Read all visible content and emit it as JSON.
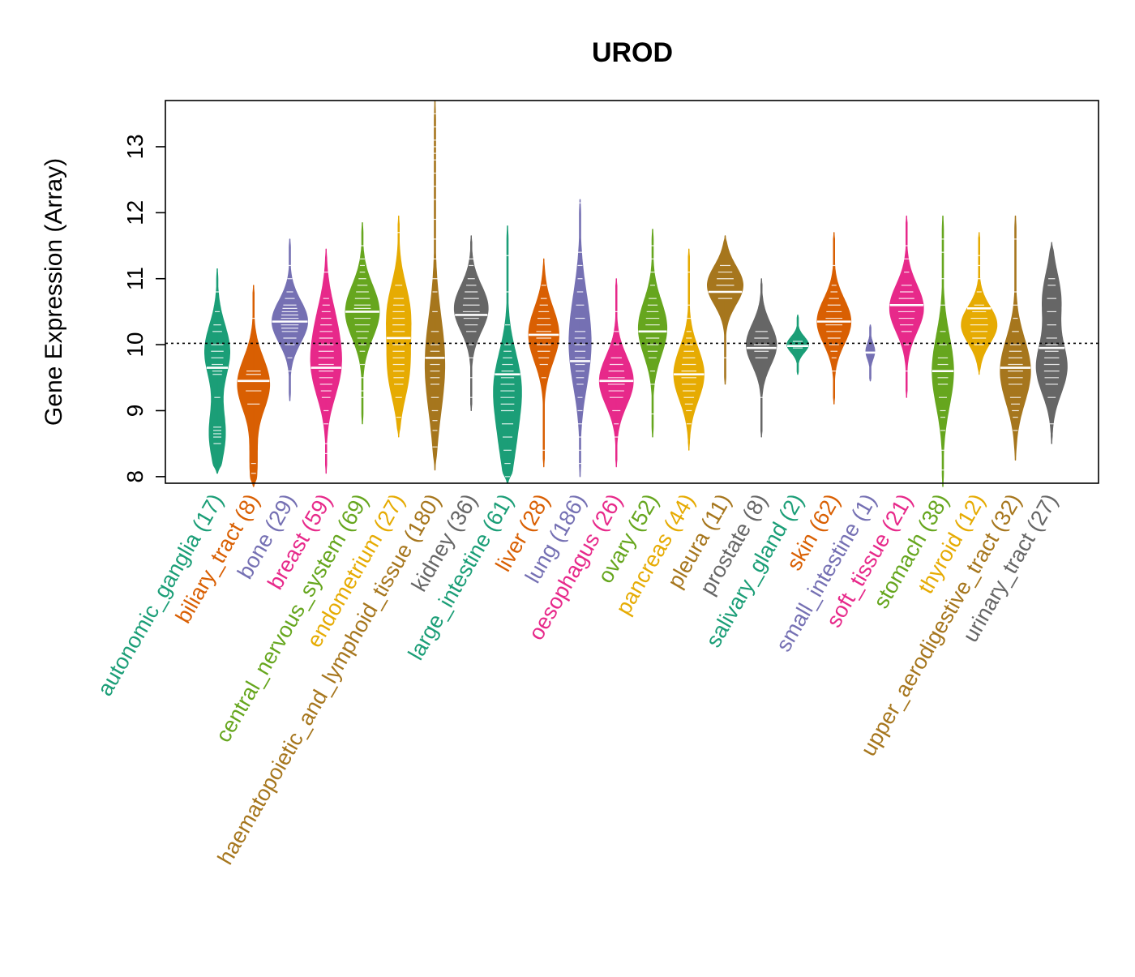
{
  "chart_data": {
    "type": "violin",
    "title": "UROD",
    "xlabel": "",
    "ylabel": "Gene Expression (Array)",
    "ylim": [
      7.9,
      13.7
    ],
    "yticks": [
      8,
      9,
      10,
      11,
      12,
      13
    ],
    "reference_line": 10.02,
    "categories": [
      {
        "label": "autonomic_ganglia (17)",
        "color": "#1B9E77",
        "min": 8.05,
        "max": 11.15,
        "median": 9.65,
        "modes": [
          [
            9.9,
            0.7
          ],
          [
            8.65,
            0.45
          ]
        ],
        "points": [
          8.5,
          8.6,
          8.65,
          8.7,
          8.75,
          9.2,
          9.55,
          9.6,
          9.65,
          9.7,
          9.8,
          9.9,
          10.0,
          10.2,
          10.3,
          10.5,
          10.8
        ]
      },
      {
        "label": "biliary_tract (8)",
        "color": "#D95F02",
        "min": 7.85,
        "max": 10.9,
        "median": 9.45,
        "modes": [
          [
            9.4,
            0.9
          ],
          [
            8.2,
            0.2
          ]
        ],
        "points": [
          8.05,
          8.2,
          9.1,
          9.3,
          9.45,
          9.55,
          9.6,
          10.4
        ]
      },
      {
        "label": "bone (29)",
        "color": "#7570B3",
        "min": 9.15,
        "max": 11.6,
        "median": 10.35,
        "modes": [
          [
            10.35,
            1.0
          ]
        ],
        "points": [
          9.6,
          9.8,
          10.0,
          10.1,
          10.2,
          10.25,
          10.3,
          10.35,
          10.4,
          10.45,
          10.5,
          10.55,
          10.6,
          10.7,
          10.8,
          11.0,
          11.2
        ]
      },
      {
        "label": "breast (59)",
        "color": "#E7298A",
        "min": 8.05,
        "max": 11.45,
        "median": 9.65,
        "modes": [
          [
            9.6,
            0.7
          ],
          [
            10.3,
            0.45
          ]
        ],
        "points": [
          8.35,
          8.5,
          8.8,
          9.0,
          9.2,
          9.3,
          9.4,
          9.5,
          9.6,
          9.65,
          9.7,
          9.8,
          9.9,
          10.0,
          10.1,
          10.2,
          10.3,
          10.4,
          10.5,
          10.6,
          10.7,
          11.1
        ]
      },
      {
        "label": "central_nervous_system (69)",
        "color": "#66A61E",
        "min": 8.8,
        "max": 11.85,
        "median": 10.5,
        "modes": [
          [
            10.5,
            0.95
          ]
        ],
        "points": [
          9.2,
          9.3,
          9.5,
          9.7,
          9.9,
          10.0,
          10.1,
          10.2,
          10.3,
          10.4,
          10.5,
          10.55,
          10.6,
          10.7,
          10.8,
          10.9,
          11.0,
          11.1,
          11.2,
          11.3,
          11.5
        ]
      },
      {
        "label": "endometrium (27)",
        "color": "#E6AB02",
        "min": 8.6,
        "max": 11.95,
        "median": 10.1,
        "modes": [
          [
            10.5,
            0.6
          ],
          [
            9.6,
            0.55
          ]
        ],
        "points": [
          8.9,
          9.2,
          9.4,
          9.5,
          9.6,
          9.7,
          9.8,
          9.9,
          10.0,
          10.2,
          10.3,
          10.4,
          10.5,
          10.6,
          10.7,
          10.9,
          11.7
        ]
      },
      {
        "label": "haematopoietic_and_lymphoid_tissue (180)",
        "color": "#A6761D",
        "min": 8.1,
        "max": 13.7,
        "median": 9.8,
        "modes": [
          [
            9.7,
            0.55
          ]
        ],
        "points": [
          8.45,
          8.7,
          8.85,
          9.0,
          9.2,
          9.4,
          9.5,
          9.6,
          9.7,
          9.8,
          9.9,
          10.0,
          10.2,
          10.5,
          10.8,
          11.0,
          11.3,
          11.6,
          11.9,
          12.2,
          12.4,
          12.6,
          12.8,
          12.9,
          13.0,
          13.1,
          13.3,
          13.5
        ]
      },
      {
        "label": "kidney (36)",
        "color": "#666666",
        "min": 9.0,
        "max": 11.65,
        "median": 10.45,
        "modes": [
          [
            10.55,
            0.95
          ]
        ],
        "points": [
          9.2,
          9.5,
          9.8,
          10.0,
          10.2,
          10.3,
          10.4,
          10.5,
          10.6,
          10.7,
          10.8,
          10.9,
          11.0,
          11.2,
          11.3
        ]
      },
      {
        "label": "large_intestine (61)",
        "color": "#1B9E77",
        "min": 7.9,
        "max": 11.8,
        "median": 9.55,
        "modes": [
          [
            9.4,
            0.7
          ],
          [
            8.5,
            0.35
          ]
        ],
        "points": [
          8.0,
          8.2,
          8.4,
          8.6,
          8.8,
          9.0,
          9.1,
          9.2,
          9.3,
          9.4,
          9.5,
          9.6,
          9.7,
          9.8,
          9.9,
          10.0,
          10.3,
          10.8,
          11.35
        ]
      },
      {
        "label": "liver (28)",
        "color": "#D95F02",
        "min": 8.15,
        "max": 11.3,
        "median": 10.15,
        "modes": [
          [
            10.15,
            0.85
          ]
        ],
        "points": [
          8.4,
          9.5,
          9.7,
          9.8,
          9.9,
          10.0,
          10.1,
          10.15,
          10.2,
          10.3,
          10.4,
          10.5,
          10.6,
          10.7,
          10.9
        ]
      },
      {
        "label": "lung (186)",
        "color": "#7570B3",
        "min": 8.0,
        "max": 12.2,
        "median": 9.75,
        "modes": [
          [
            9.8,
            0.45
          ],
          [
            10.5,
            0.3
          ]
        ],
        "points": [
          8.2,
          8.4,
          8.6,
          8.8,
          9.0,
          9.2,
          9.4,
          9.5,
          9.6,
          9.7,
          9.8,
          9.9,
          10.0,
          10.1,
          10.2,
          10.4,
          10.6,
          10.8,
          11.0,
          11.2,
          11.4,
          12.15
        ]
      },
      {
        "label": "oesophagus (26)",
        "color": "#E7298A",
        "min": 8.15,
        "max": 11.0,
        "median": 9.45,
        "modes": [
          [
            9.45,
            0.95
          ]
        ],
        "points": [
          8.6,
          8.8,
          9.0,
          9.2,
          9.3,
          9.4,
          9.45,
          9.5,
          9.6,
          9.7,
          9.8,
          10.0,
          10.2,
          10.5
        ]
      },
      {
        "label": "ovary (52)",
        "color": "#66A61E",
        "min": 8.6,
        "max": 11.75,
        "median": 10.2,
        "modes": [
          [
            10.25,
            0.8
          ]
        ],
        "points": [
          8.95,
          9.4,
          9.6,
          9.8,
          9.9,
          10.0,
          10.1,
          10.2,
          10.3,
          10.4,
          10.5,
          10.6,
          10.7,
          10.9,
          11.1,
          11.3,
          11.5
        ]
      },
      {
        "label": "pancreas (44)",
        "color": "#E6AB02",
        "min": 8.4,
        "max": 11.45,
        "median": 9.55,
        "modes": [
          [
            9.55,
            0.85
          ]
        ],
        "points": [
          8.8,
          9.0,
          9.1,
          9.2,
          9.3,
          9.4,
          9.5,
          9.6,
          9.7,
          9.8,
          9.9,
          10.0,
          10.1,
          10.2,
          10.4,
          10.6,
          11.1
        ]
      },
      {
        "label": "pleura (11)",
        "color": "#A6761D",
        "min": 9.4,
        "max": 11.65,
        "median": 10.8,
        "modes": [
          [
            10.9,
            1.0
          ]
        ],
        "points": [
          9.8,
          10.7,
          10.8,
          10.9,
          11.0,
          11.1,
          11.2
        ]
      },
      {
        "label": "prostate (8)",
        "color": "#666666",
        "min": 8.6,
        "max": 11.0,
        "median": 9.95,
        "modes": [
          [
            10.0,
            0.85
          ]
        ],
        "points": [
          9.2,
          9.8,
          9.9,
          10.0,
          10.1,
          10.2
        ]
      },
      {
        "label": "salivary_gland (2)",
        "color": "#1B9E77",
        "min": 9.55,
        "max": 10.45,
        "median": 9.98,
        "modes": [
          [
            10.0,
            0.6
          ]
        ],
        "points": [
          9.95,
          10.05
        ]
      },
      {
        "label": "skin (62)",
        "color": "#D95F02",
        "min": 9.1,
        "max": 11.7,
        "median": 10.35,
        "modes": [
          [
            10.35,
            0.95
          ]
        ],
        "points": [
          9.6,
          9.8,
          9.9,
          10.0,
          10.1,
          10.2,
          10.3,
          10.4,
          10.5,
          10.6,
          10.7,
          10.8,
          10.9,
          11.2
        ]
      },
      {
        "label": "small_intestine (1)",
        "color": "#7570B3",
        "min": 9.45,
        "max": 10.3,
        "median": 9.88,
        "modes": [
          [
            9.9,
            0.25
          ]
        ],
        "points": [
          9.88
        ]
      },
      {
        "label": "soft_tissue (21)",
        "color": "#E7298A",
        "min": 9.2,
        "max": 11.95,
        "median": 10.6,
        "modes": [
          [
            10.55,
            0.95
          ]
        ],
        "points": [
          9.6,
          10.0,
          10.2,
          10.3,
          10.4,
          10.5,
          10.6,
          10.7,
          10.8,
          10.9,
          11.1,
          11.3,
          11.5
        ]
      },
      {
        "label": "stomach (38)",
        "color": "#66A61E",
        "min": 7.85,
        "max": 11.95,
        "median": 9.6,
        "modes": [
          [
            9.6,
            0.6
          ]
        ],
        "points": [
          8.1,
          8.4,
          8.7,
          8.9,
          9.0,
          9.2,
          9.4,
          9.5,
          9.6,
          9.7,
          9.8,
          10.0,
          10.2,
          10.6,
          11.0,
          11.4,
          11.6
        ]
      },
      {
        "label": "thyroid (12)",
        "color": "#E6AB02",
        "min": 9.55,
        "max": 11.7,
        "median": 10.55,
        "modes": [
          [
            10.3,
            1.0
          ]
        ],
        "points": [
          10.0,
          10.1,
          10.2,
          10.3,
          10.4,
          10.5,
          10.55,
          10.6,
          10.8,
          11.0,
          11.2,
          11.35
        ]
      },
      {
        "label": "upper_aerodigestive_tract (32)",
        "color": "#A6761D",
        "min": 8.25,
        "max": 11.95,
        "median": 9.65,
        "modes": [
          [
            9.6,
            0.85
          ]
        ],
        "points": [
          8.7,
          8.9,
          9.0,
          9.1,
          9.2,
          9.4,
          9.5,
          9.6,
          9.7,
          9.8,
          9.9,
          10.0,
          10.2,
          10.4,
          10.6,
          10.8,
          11.6
        ]
      },
      {
        "label": "urinary_tract (27)",
        "color": "#666666",
        "min": 8.5,
        "max": 11.55,
        "median": 9.95,
        "modes": [
          [
            9.65,
            0.85
          ],
          [
            10.7,
            0.5
          ]
        ],
        "points": [
          8.8,
          9.2,
          9.4,
          9.5,
          9.6,
          9.7,
          9.8,
          9.9,
          10.0,
          10.1,
          10.3,
          10.5,
          10.7,
          10.9,
          11.0
        ]
      }
    ]
  }
}
